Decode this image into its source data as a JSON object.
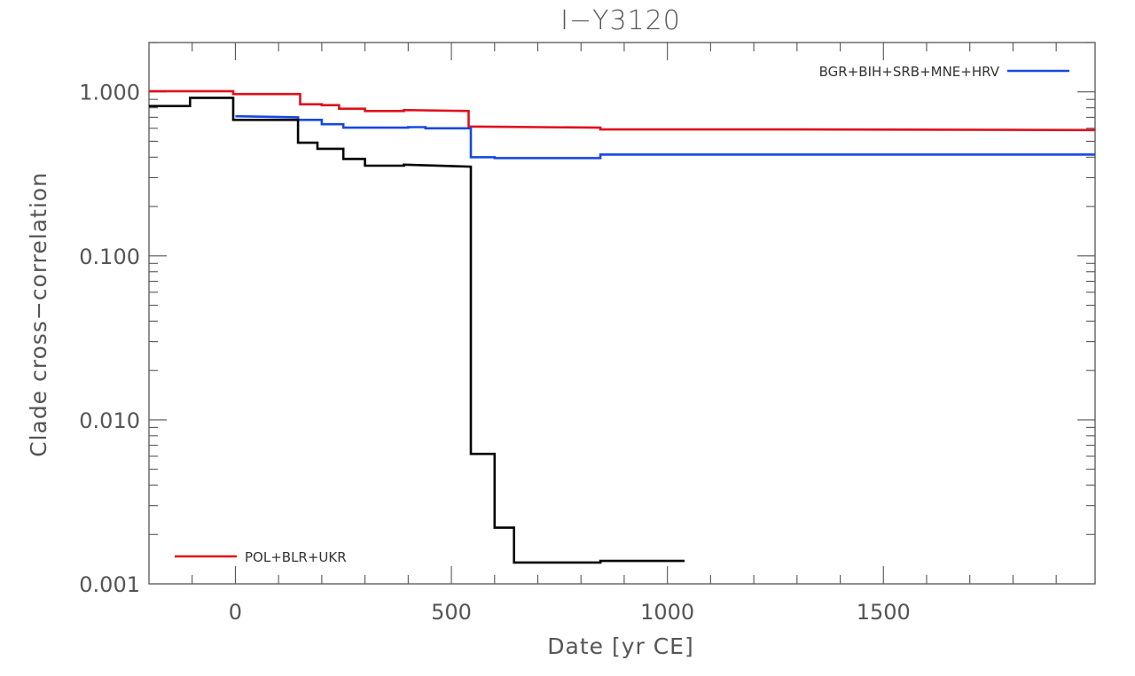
{
  "chart_data": {
    "type": "line",
    "title": "I−Y3120",
    "xlabel": "Date [yr CE]",
    "ylabel": "Clade cross−correlation",
    "xlim": [
      -200,
      1990
    ],
    "ylim": [
      0.001,
      2.0
    ],
    "yscale": "log",
    "xticks": [
      0,
      500,
      1000,
      1500
    ],
    "xtick_labels": [
      "0",
      "500",
      "1000",
      "1500"
    ],
    "yticks": [
      0.001,
      0.01,
      0.1,
      1.0
    ],
    "ytick_labels": [
      "0.001",
      "0.010",
      "0.100",
      "1.000"
    ],
    "grid": false,
    "series": [
      {
        "name": "POL+BLR+UKR",
        "color": "#e0101c",
        "legend": "bottom-left",
        "x": [
          -200,
          -5,
          -5,
          150,
          150,
          200,
          200,
          240,
          240,
          300,
          300,
          390,
          390,
          540,
          540,
          845,
          845,
          1300,
          1990
        ],
        "y": [
          1.01,
          1.01,
          0.97,
          0.97,
          0.84,
          0.84,
          0.83,
          0.83,
          0.79,
          0.79,
          0.765,
          0.765,
          0.775,
          0.765,
          0.615,
          0.605,
          0.59,
          0.59,
          0.585
        ]
      },
      {
        "name": "BGR+BIH+SRB+MNE+HRV",
        "color": "#1848e0",
        "legend": "top-right",
        "x": [
          0,
          145,
          145,
          200,
          200,
          250,
          250,
          400,
          400,
          440,
          440,
          545,
          545,
          600,
          600,
          845,
          845,
          1990
        ],
        "y": [
          0.71,
          0.7,
          0.675,
          0.675,
          0.635,
          0.635,
          0.605,
          0.605,
          0.61,
          0.61,
          0.6,
          0.6,
          0.4,
          0.4,
          0.395,
          0.395,
          0.415,
          0.415
        ]
      },
      {
        "name": "",
        "color": "#000000",
        "x": [
          -200,
          -105,
          -105,
          -5,
          -5,
          145,
          145,
          190,
          190,
          250,
          250,
          300,
          300,
          390,
          390,
          545,
          545,
          600,
          600,
          645,
          645,
          845,
          845,
          1040
        ],
        "y": [
          0.82,
          0.82,
          0.92,
          0.92,
          0.675,
          0.675,
          0.49,
          0.49,
          0.45,
          0.45,
          0.39,
          0.39,
          0.355,
          0.355,
          0.36,
          0.35,
          0.0062,
          0.0062,
          0.0022,
          0.0022,
          0.00135,
          0.00135,
          0.00138,
          0.00138
        ]
      }
    ]
  }
}
